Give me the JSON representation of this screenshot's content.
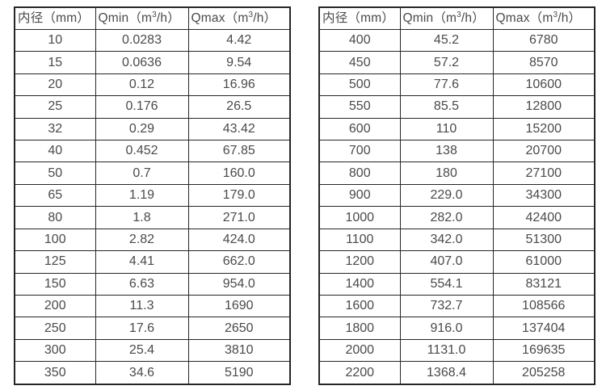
{
  "page": {
    "background": "#ffffff",
    "border_color": "#262626",
    "text_color": "#4a4a4a"
  },
  "tables": [
    {
      "name": "flow-spec-table-small-diameters",
      "headers": [
        "内径（mm）",
        "Qmin（m³/h）",
        "Qmax（m³/h）"
      ],
      "rows": [
        [
          "10",
          "0.0283",
          "4.42"
        ],
        [
          "15",
          "0.0636",
          "9.54"
        ],
        [
          "20",
          "0.12",
          "16.96"
        ],
        [
          "25",
          "0.176",
          "26.5"
        ],
        [
          "32",
          "0.29",
          "43.42"
        ],
        [
          "40",
          "0.452",
          "67.85"
        ],
        [
          "50",
          "0.7",
          "160.0"
        ],
        [
          "65",
          "1.19",
          "179.0"
        ],
        [
          "80",
          "1.8",
          "271.0"
        ],
        [
          "100",
          "2.82",
          "424.0"
        ],
        [
          "125",
          "4.41",
          "662.0"
        ],
        [
          "150",
          "6.63",
          "954.0"
        ],
        [
          "200",
          "11.3",
          "1690"
        ],
        [
          "250",
          "17.6",
          "2650"
        ],
        [
          "300",
          "25.4",
          "3810"
        ],
        [
          "350",
          "34.6",
          "5190"
        ]
      ]
    },
    {
      "name": "flow-spec-table-large-diameters",
      "headers": [
        "内径（mm）",
        "Qmin（m³/h）",
        "Qmax（m³/h）"
      ],
      "rows": [
        [
          "400",
          "45.2",
          "6780"
        ],
        [
          "450",
          "57.2",
          "8570"
        ],
        [
          "500",
          "77.6",
          "10600"
        ],
        [
          "550",
          "85.5",
          "12800"
        ],
        [
          "600",
          "110",
          "15200"
        ],
        [
          "700",
          "138",
          "20700"
        ],
        [
          "800",
          "180",
          "27100"
        ],
        [
          "900",
          "229.0",
          "34300"
        ],
        [
          "1000",
          "282.0",
          "42400"
        ],
        [
          "1100",
          "342.0",
          "51300"
        ],
        [
          "1200",
          "407.0",
          "61000"
        ],
        [
          "1400",
          "554.1",
          "83121"
        ],
        [
          "1600",
          "732.7",
          "108566"
        ],
        [
          "1800",
          "916.0",
          "137404"
        ],
        [
          "2000",
          "1131.0",
          "169635"
        ],
        [
          "2200",
          "1368.4",
          "205258"
        ]
      ]
    }
  ]
}
